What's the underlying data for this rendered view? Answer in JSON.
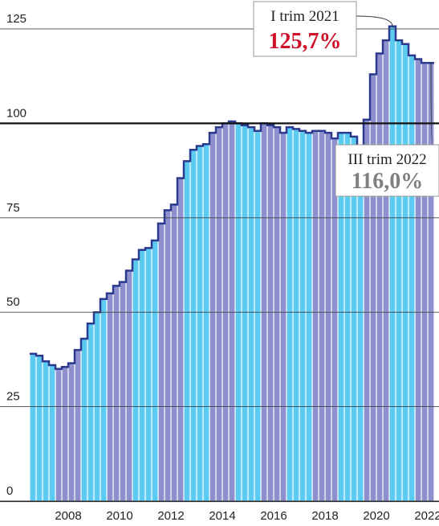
{
  "chart_data": {
    "type": "bar",
    "categories": [
      null,
      null,
      null,
      null,
      null,
      "2008",
      null,
      null,
      null,
      null,
      null,
      null,
      null,
      "2010",
      null,
      null,
      null,
      null,
      null,
      null,
      null,
      "2012",
      null,
      null,
      null,
      null,
      null,
      null,
      null,
      "2014",
      null,
      null,
      null,
      null,
      null,
      null,
      null,
      "2016",
      null,
      null,
      null,
      null,
      null,
      null,
      null,
      "2018",
      null,
      null,
      null,
      null,
      null,
      null,
      null,
      "2020",
      null,
      null,
      null,
      null,
      null,
      null,
      null,
      "2022",
      null
    ],
    "values": [
      39,
      38.5,
      37,
      36,
      35,
      35.5,
      36.5,
      40,
      43,
      47,
      50,
      53.5,
      55,
      57,
      58,
      61,
      64,
      66.5,
      67,
      69,
      73.5,
      77,
      78.5,
      85.5,
      90,
      93,
      94,
      94.5,
      97.5,
      99,
      100,
      100.5,
      100,
      99.5,
      99,
      98,
      100,
      99.5,
      99,
      97.5,
      99,
      98.5,
      98,
      97.5,
      98,
      98,
      97.5,
      96,
      97.5,
      97.5,
      96.5,
      94,
      101,
      113,
      118.5,
      122,
      125.7,
      122,
      121,
      118,
      117,
      116,
      116.0
    ],
    "colors": [
      "#5ccbf2",
      "#5ccbf2",
      "#5ccbf2",
      "#5ccbf2",
      "#8f91cf",
      "#8f91cf",
      "#8f91cf",
      "#8f91cf",
      "#5ccbf2",
      "#5ccbf2",
      "#5ccbf2",
      "#5ccbf2",
      "#8f91cf",
      "#8f91cf",
      "#8f91cf",
      "#8f91cf",
      "#5ccbf2",
      "#5ccbf2",
      "#5ccbf2",
      "#5ccbf2",
      "#8f91cf",
      "#8f91cf",
      "#8f91cf",
      "#8f91cf",
      "#5ccbf2",
      "#5ccbf2",
      "#5ccbf2",
      "#5ccbf2",
      "#8f91cf",
      "#8f91cf",
      "#8f91cf",
      "#8f91cf",
      "#5ccbf2",
      "#5ccbf2",
      "#5ccbf2",
      "#5ccbf2",
      "#8f91cf",
      "#8f91cf",
      "#8f91cf",
      "#8f91cf",
      "#5ccbf2",
      "#5ccbf2",
      "#5ccbf2",
      "#5ccbf2",
      "#8f91cf",
      "#8f91cf",
      "#8f91cf",
      "#8f91cf",
      "#5ccbf2",
      "#5ccbf2",
      "#5ccbf2",
      "#5ccbf2",
      "#8f91cf",
      "#8f91cf",
      "#8f91cf",
      "#8f91cf",
      "#5ccbf2",
      "#5ccbf2",
      "#5ccbf2",
      "#5ccbf2",
      "#8f91cf",
      "#8f91cf",
      "#8f91cf"
    ],
    "line_color": "#2b3a8f",
    "ylim": [
      0,
      130
    ],
    "yticks": [
      0,
      25,
      50,
      75,
      100,
      125
    ],
    "grid": true,
    "reference_line": 100,
    "annotations": [
      {
        "title": "I trim 2021",
        "value_label": "125,7%",
        "index": 56,
        "color": "#d0102a"
      },
      {
        "title": "III trim 2022",
        "value_label": "116,0%",
        "index": 62,
        "color": "#808080"
      }
    ]
  }
}
